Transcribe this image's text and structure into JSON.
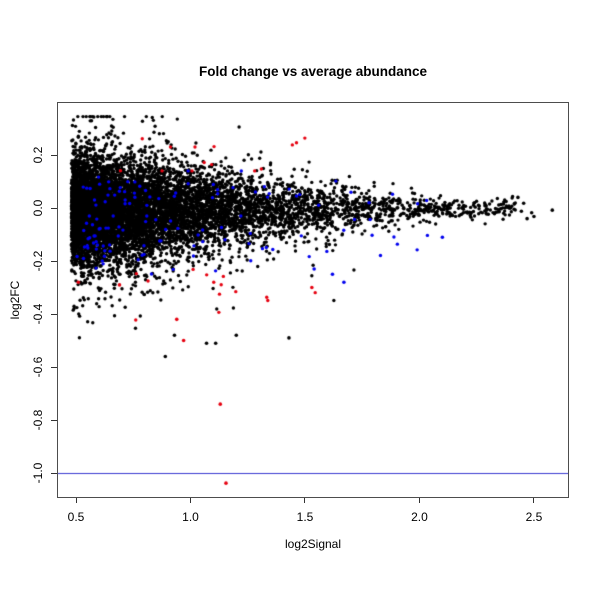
{
  "chart_data": {
    "type": "scatter",
    "title": "Fold change vs average abundance",
    "xlabel": "log2Signal",
    "ylabel": "log2FC",
    "xlim": [
      0.417,
      2.653
    ],
    "ylim": [
      -1.094,
      0.4
    ],
    "x_ticks": [
      0.5,
      1.0,
      1.5,
      2.0,
      2.5
    ],
    "x_tick_labels": [
      "0.5",
      "1.0",
      "1.5",
      "2.0",
      "2.5"
    ],
    "y_ticks": [
      0.2,
      0.0,
      -0.2,
      -0.4,
      -0.6,
      -0.8,
      -1.0
    ],
    "y_tick_labels": [
      "0.2",
      "0.0",
      "-0.2",
      "-0.4",
      "-0.6",
      "-0.8",
      "-1.0"
    ],
    "grid": false,
    "legend": false,
    "point_radius_px": 1.7,
    "reference_line": {
      "y": -1.0,
      "color": "#3a3ad0"
    },
    "colors": {
      "points": "#000000",
      "highlight_blue": "#0000ee",
      "highlight_red": "#e60010",
      "axis": "#4d4d4d",
      "text": "#000000",
      "background": "#ffffff"
    },
    "seed": 42,
    "series": [
      {
        "name": "probes-black",
        "color": "#000000",
        "n": 9000,
        "x_model": {
          "dist": "trunc_exp_mix",
          "min": 0.48,
          "max": 2.42,
          "components": [
            {
              "w": 0.78,
              "rate": 3.0
            },
            {
              "w": 0.22,
              "rate": 1.3
            }
          ]
        },
        "y_model": {
          "dist": "funnel",
          "x0": 0.48,
          "center": -0.005,
          "sigma_min": 0.008,
          "sigma0": 0.085,
          "tau": 1.1,
          "pow": 1.6,
          "mix": [
            {
              "w": 0.8,
              "kind": "core",
              "s": 1.0
            },
            {
              "w": 0.12,
              "kind": "core",
              "s": 1.9
            },
            {
              "w": 0.05,
              "kind": "tail_down",
              "base": 0.05,
              "scale": 0.11,
              "xmax": 1.75
            },
            {
              "w": 0.03,
              "kind": "tail_up",
              "base": 0.04,
              "scale": 0.075,
              "xmax": 1.7
            }
          ],
          "clip": [
            -0.52,
            0.345
          ]
        }
      },
      {
        "name": "highlight-blue",
        "color": "#0000ee",
        "n": 125,
        "x_model": {
          "dist": "trunc_exp_mix",
          "min": 0.5,
          "max": 2.12,
          "components": [
            {
              "w": 1.0,
              "rate": 1.9
            }
          ]
        },
        "y_model": {
          "dist": "bands",
          "bands": [
            {
              "w": 0.58,
              "mean": -0.13,
              "sd": 0.055,
              "clip": [
                -0.29,
                -0.03
              ]
            },
            {
              "w": 0.42,
              "mean": 0.06,
              "sd": 0.035,
              "clip": [
                0.01,
                0.14
              ]
            }
          ]
        }
      },
      {
        "name": "highlight-red",
        "color": "#e60010",
        "n": 28,
        "x_model": {
          "dist": "trunc_exp_mix",
          "min": 0.62,
          "max": 1.55,
          "components": [
            {
              "w": 1.0,
              "rate": 1.0
            }
          ]
        },
        "y_model": {
          "dist": "bands",
          "bands": [
            {
              "w": 0.5,
              "mean": 0.19,
              "sd": 0.04,
              "clip": [
                0.14,
                0.265
              ]
            },
            {
              "w": 0.5,
              "mean": -0.3,
              "sd": 0.06,
              "clip": [
                -0.44,
                -0.18
              ]
            }
          ]
        }
      }
    ],
    "notable_points": [
      {
        "x": 1.155,
        "y": -1.038,
        "color": "red"
      },
      {
        "x": 1.13,
        "y": -0.74,
        "color": "red"
      },
      {
        "x": 0.97,
        "y": -0.5,
        "color": "red"
      },
      {
        "x": 0.94,
        "y": -0.42,
        "color": "red"
      },
      {
        "x": 1.53,
        "y": -0.3,
        "color": "red"
      },
      {
        "x": 0.69,
        "y": -0.29,
        "color": "red"
      },
      {
        "x": 0.51,
        "y": -0.28,
        "color": "red"
      },
      {
        "x": 0.89,
        "y": -0.56,
        "color": "black"
      },
      {
        "x": 0.93,
        "y": -0.48,
        "color": "black"
      },
      {
        "x": 1.07,
        "y": -0.51,
        "color": "black"
      },
      {
        "x": 1.11,
        "y": -0.51,
        "color": "black"
      },
      {
        "x": 1.2,
        "y": -0.48,
        "color": "black"
      },
      {
        "x": 1.43,
        "y": -0.49,
        "color": "black"
      },
      {
        "x": 2.43,
        "y": 0.04,
        "color": "black"
      },
      {
        "x": 2.445,
        "y": -0.012,
        "color": "black"
      },
      {
        "x": 2.455,
        "y": 0.018,
        "color": "black"
      },
      {
        "x": 2.47,
        "y": -0.04,
        "color": "black"
      },
      {
        "x": 2.49,
        "y": -0.018,
        "color": "black"
      },
      {
        "x": 2.5,
        "y": -0.032,
        "color": "black"
      },
      {
        "x": 2.58,
        "y": -0.008,
        "color": "black"
      },
      {
        "x": 1.54,
        "y": -0.23,
        "color": "blue"
      },
      {
        "x": 1.62,
        "y": -0.25,
        "color": "blue"
      },
      {
        "x": 1.67,
        "y": -0.28,
        "color": "blue"
      },
      {
        "x": 1.78,
        "y": 0.02,
        "color": "blue"
      },
      {
        "x": 2.1,
        "y": -0.11,
        "color": "blue"
      }
    ]
  }
}
